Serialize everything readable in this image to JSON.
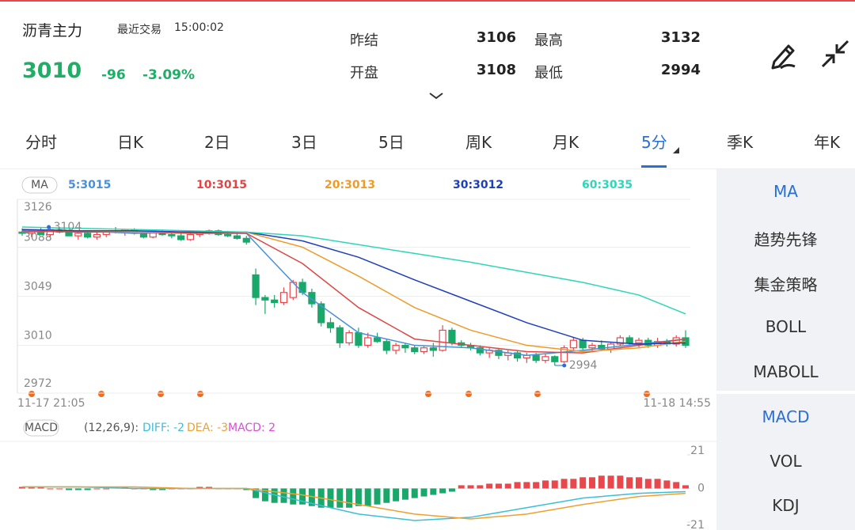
{
  "header": {
    "name": "沥青主力",
    "trade_label": "最近交易",
    "time": "15:00:02",
    "price": 3010,
    "change": -96,
    "change_pct": "-3.09%",
    "stats": [
      {
        "label": "昨结",
        "value": 3106
      },
      {
        "label": "最高",
        "value": 3132
      },
      {
        "label": "开盘",
        "value": 3108
      },
      {
        "label": "最低",
        "value": 2994
      }
    ]
  },
  "tabs": [
    "分时",
    "日K",
    "2日",
    "3日",
    "5日",
    "周K",
    "月K",
    "5分",
    "季K",
    "年K"
  ],
  "side_menu": {
    "top": [
      "MA",
      "趋势先锋",
      "集金策略",
      "BOLL",
      "MABOLL"
    ],
    "bottom": [
      "MACD",
      "VOL",
      "KDJ"
    ]
  },
  "chart_data": [
    {
      "type": "candlestick",
      "legend_tag": "MA",
      "ylim": [
        2972,
        3126
      ],
      "yticks": [
        2972,
        3010,
        3049,
        3088,
        3126
      ],
      "x_labels": [
        "11-17 21:05",
        "11-18 14:55"
      ],
      "max_label": 3104,
      "min_label": 2994,
      "up_color": "#e8474c",
      "down_color": "#1aa86a",
      "candles": [
        [
          3100,
          3103,
          3097,
          3099
        ],
        [
          3099,
          3102,
          3096,
          3101
        ],
        [
          3101,
          3104,
          3098,
          3098
        ],
        [
          3098,
          3103,
          3096,
          3102
        ],
        [
          3102,
          3104,
          3099,
          3100
        ],
        [
          3100,
          3102,
          3097,
          3097
        ],
        [
          3097,
          3100,
          3094,
          3099
        ],
        [
          3099,
          3101,
          3095,
          3096
        ],
        [
          3096,
          3100,
          3094,
          3098
        ],
        [
          3098,
          3101,
          3096,
          3101
        ],
        [
          3101,
          3104,
          3099,
          3100
        ],
        [
          3100,
          3102,
          3097,
          3102
        ],
        [
          3102,
          3103,
          3098,
          3099
        ],
        [
          3099,
          3101,
          3095,
          3096
        ],
        [
          3096,
          3101,
          3095,
          3100
        ],
        [
          3100,
          3102,
          3097,
          3098
        ],
        [
          3098,
          3100,
          3095,
          3097
        ],
        [
          3097,
          3099,
          3093,
          3094
        ],
        [
          3094,
          3099,
          3093,
          3098
        ],
        [
          3098,
          3101,
          3096,
          3100
        ],
        [
          3100,
          3102,
          3098,
          3101
        ],
        [
          3101,
          3102,
          3097,
          3098
        ],
        [
          3098,
          3101,
          3096,
          3097
        ],
        [
          3097,
          3099,
          3094,
          3095
        ],
        [
          3095,
          3097,
          3090,
          3092
        ],
        [
          3066,
          3071,
          3042,
          3048
        ],
        [
          3048,
          3050,
          3035,
          3046
        ],
        [
          3046,
          3050,
          3040,
          3044
        ],
        [
          3044,
          3056,
          3042,
          3052
        ],
        [
          3048,
          3062,
          3046,
          3060
        ],
        [
          3060,
          3063,
          3050,
          3052
        ],
        [
          3052,
          3055,
          3040,
          3043
        ],
        [
          3043,
          3045,
          3025,
          3028
        ],
        [
          3028,
          3032,
          3020,
          3024
        ],
        [
          3024,
          3026,
          3008,
          3012
        ],
        [
          3012,
          3022,
          3010,
          3020
        ],
        [
          3020,
          3024,
          3008,
          3010
        ],
        [
          3010,
          3020,
          3008,
          3016
        ],
        [
          3016,
          3020,
          3012,
          3013
        ],
        [
          3013,
          3015,
          3003,
          3006
        ],
        [
          3006,
          3012,
          3003,
          3010
        ],
        [
          3010,
          3012,
          3004,
          3008
        ],
        [
          3008,
          3010,
          3003,
          3005
        ],
        [
          3005,
          3010,
          3003,
          3008
        ],
        [
          3008,
          3012,
          3001,
          3006
        ],
        [
          3006,
          3026,
          3005,
          3022
        ],
        [
          3022,
          3024,
          3010,
          3012
        ],
        [
          3012,
          3014,
          3008,
          3010
        ],
        [
          3010,
          3012,
          3006,
          3008
        ],
        [
          3008,
          3010,
          3002,
          3004
        ],
        [
          3004,
          3008,
          3000,
          3006
        ],
        [
          3006,
          3008,
          2999,
          3002
        ],
        [
          3002,
          3006,
          2998,
          3004
        ],
        [
          3004,
          3006,
          2997,
          3000
        ],
        [
          3000,
          3004,
          2996,
          3002
        ],
        [
          3002,
          3004,
          2996,
          2998
        ],
        [
          2998,
          3003,
          2996,
          3001
        ],
        [
          3001,
          3002,
          2994,
          2997
        ],
        [
          2997,
          3010,
          2996,
          3008
        ],
        [
          3008,
          3016,
          3006,
          3014
        ],
        [
          3014,
          3016,
          3006,
          3008
        ],
        [
          3008,
          3012,
          3005,
          3010
        ],
        [
          3010,
          3014,
          3006,
          3007
        ],
        [
          3007,
          3012,
          3004,
          3011
        ],
        [
          3011,
          3018,
          3009,
          3016
        ],
        [
          3016,
          3018,
          3010,
          3012
        ],
        [
          3012,
          3016,
          3008,
          3014
        ],
        [
          3014,
          3016,
          3008,
          3010
        ],
        [
          3010,
          3016,
          3008,
          3013
        ],
        [
          3013,
          3015,
          3009,
          3011
        ],
        [
          3011,
          3018,
          3009,
          3016
        ],
        [
          3016,
          3022,
          3008,
          3010
        ]
      ],
      "series": [
        {
          "name": "5:3015",
          "color": "#4a90d9",
          "x": [
            0,
            6,
            12,
            18,
            24,
            30,
            36,
            42,
            48,
            54,
            60,
            66,
            71
          ],
          "values": [
            3100,
            3101,
            3099,
            3100,
            3099,
            3052,
            3020,
            3010,
            3008,
            3002,
            3006,
            3011,
            3015
          ]
        },
        {
          "name": "10:3015",
          "color": "#e04545",
          "x": [
            0,
            6,
            12,
            18,
            24,
            30,
            36,
            42,
            48,
            54,
            60,
            66,
            71
          ],
          "values": [
            3101,
            3100,
            3100,
            3099,
            3099,
            3075,
            3040,
            3015,
            3010,
            3005,
            3004,
            3010,
            3015
          ]
        },
        {
          "name": "20:3013",
          "color": "#f09a28",
          "x": [
            0,
            6,
            12,
            18,
            24,
            30,
            36,
            42,
            48,
            54,
            60,
            66,
            71
          ],
          "values": [
            3102,
            3101,
            3100,
            3100,
            3100,
            3088,
            3065,
            3040,
            3022,
            3010,
            3005,
            3008,
            3013
          ]
        },
        {
          "name": "30:3012",
          "color": "#1d3fb8",
          "x": [
            0,
            6,
            12,
            18,
            24,
            30,
            36,
            42,
            48,
            54,
            60,
            66,
            71
          ],
          "values": [
            3102,
            3101,
            3101,
            3100,
            3100,
            3093,
            3080,
            3062,
            3045,
            3028,
            3014,
            3011,
            3012
          ]
        },
        {
          "name": "60:3035",
          "color": "#2fd6b8",
          "x": [
            0,
            6,
            12,
            18,
            24,
            30,
            36,
            42,
            48,
            54,
            60,
            66,
            71
          ],
          "values": [
            3104,
            3103,
            3102,
            3101,
            3100,
            3097,
            3090,
            3083,
            3076,
            3068,
            3060,
            3050,
            3035
          ]
        }
      ]
    },
    {
      "type": "macd",
      "legend_tag": "MACD",
      "params": "(12,26,9):",
      "ylim": [
        -21,
        21
      ],
      "yticks": [
        -21,
        0,
        21
      ],
      "histogram_name": "MACD: 2",
      "histogram_color": "#d94fd8",
      "up_color": "#e8474c",
      "down_color": "#1aa86a",
      "histogram": [
        1,
        1,
        1,
        0,
        0,
        -1,
        -1,
        -1,
        0,
        0,
        1,
        1,
        0,
        0,
        -1,
        -1,
        0,
        0,
        0,
        1,
        1,
        0,
        0,
        0,
        -1,
        -6,
        -8,
        -9,
        -9,
        -10,
        -10,
        -11,
        -12,
        -12,
        -12,
        -12,
        -11,
        -11,
        -10,
        -9,
        -8,
        -7,
        -6,
        -5,
        -4,
        -3,
        -2,
        2,
        2,
        2,
        3,
        3,
        3,
        4,
        4,
        4,
        5,
        5,
        6,
        6,
        7,
        7,
        8,
        8,
        8,
        7,
        7,
        6,
        6,
        5,
        4,
        2
      ],
      "series": [
        {
          "name": "DIFF: -2",
          "color": "#3bbfd6",
          "x": [
            0,
            6,
            12,
            18,
            24,
            30,
            36,
            42,
            48,
            54,
            60,
            66,
            71
          ],
          "values": [
            1,
            1,
            0,
            0,
            0,
            -8,
            -16,
            -20,
            -18,
            -12,
            -6,
            -3,
            -2
          ]
        },
        {
          "name": "DEA: -3",
          "color": "#f0a030",
          "x": [
            0,
            6,
            12,
            18,
            24,
            30,
            36,
            42,
            48,
            54,
            60,
            66,
            71
          ],
          "values": [
            1,
            1,
            1,
            0,
            0,
            -4,
            -10,
            -16,
            -19,
            -16,
            -10,
            -5,
            -3
          ]
        }
      ]
    }
  ]
}
